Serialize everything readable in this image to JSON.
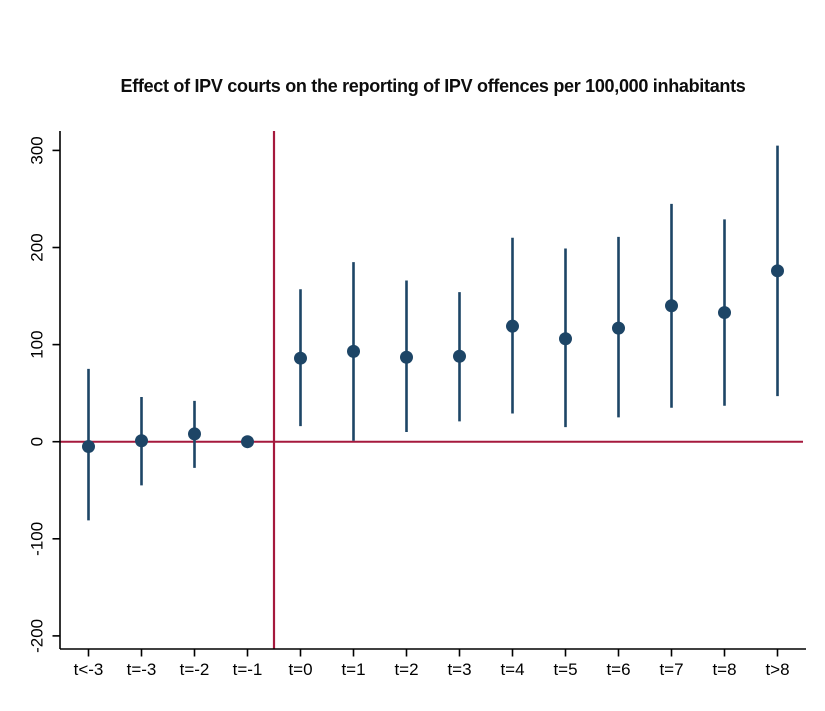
{
  "chart_data": {
    "type": "scatter",
    "subtype": "event-study coefficient plot with 95% confidence intervals",
    "title": "Effect of IPV courts on the reporting of IPV offences per 100,000 inhabitants",
    "xlabel": "",
    "ylabel": "",
    "categories": [
      "t<-3",
      "t=-3",
      "t=-2",
      "t=-1",
      "t=0",
      "t=1",
      "t=2",
      "t=3",
      "t=4",
      "t=5",
      "t=6",
      "t=7",
      "t=8",
      "t>8"
    ],
    "series": [
      {
        "name": "point_estimate",
        "values": [
          -5,
          1,
          8,
          0,
          86,
          93,
          87,
          88,
          119,
          106,
          117,
          140,
          133,
          176
        ]
      },
      {
        "name": "ci_lower",
        "values": [
          -81,
          -45,
          -27,
          null,
          16,
          1,
          10,
          21,
          29,
          15,
          25,
          35,
          37,
          47
        ]
      },
      {
        "name": "ci_upper",
        "values": [
          75,
          46,
          42,
          null,
          157,
          185,
          166,
          154,
          210,
          199,
          211,
          245,
          229,
          305
        ]
      }
    ],
    "reference_category": "t=-1",
    "y_ticks": [
      300,
      200,
      100,
      0,
      -100,
      -200
    ],
    "ylim": [
      -213.5,
      320
    ],
    "grid": false,
    "legend_position": "none",
    "annotations": {
      "zero_reference_line_y": 0,
      "treatment_reference_line_between": [
        "t=-1",
        "t=0"
      ]
    },
    "colors": {
      "point": "#1d4566",
      "ci_line": "#1d4566",
      "reference_lines": "#a5193d",
      "axis": "#000000",
      "background": "#ffffff",
      "title_text": "#0d0d0d"
    }
  }
}
